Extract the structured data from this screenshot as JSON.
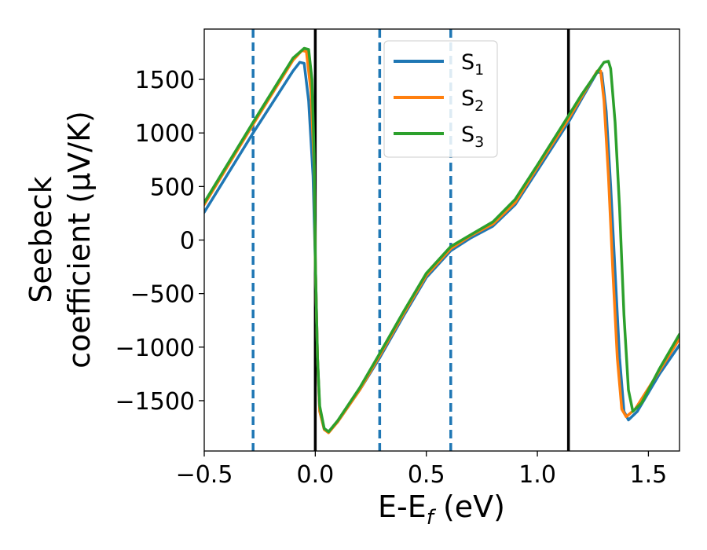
{
  "chart_data": {
    "type": "line",
    "xlabel": "E-E",
    "xlabel_sub": "f",
    "xlabel_unit": " (eV)",
    "ylabel_line1": "Seebeck",
    "ylabel_line2": "coefficient  (μV/K)",
    "xlim": [
      -0.5,
      1.64
    ],
    "ylim": [
      -1970,
      1970
    ],
    "xticks": [
      -0.5,
      0.0,
      0.5,
      1.0,
      1.5
    ],
    "xtick_labels": [
      "−0.5",
      "0.0",
      "0.5",
      "1.0",
      "1.5"
    ],
    "yticks": [
      -1500,
      -1000,
      -500,
      0,
      500,
      1000,
      1500
    ],
    "ytick_labels": [
      "−1500",
      "−1000",
      "−500",
      "0",
      "500",
      "1000",
      "1500"
    ],
    "grid": false,
    "legend_position": "top-center",
    "vlines_dashed": [
      -0.28,
      0.29,
      0.61
    ],
    "vlines_solid": [
      0.0,
      1.14
    ],
    "series": [
      {
        "name": "S",
        "name_sub": "1",
        "color": "#1f77b4",
        "points": [
          [
            -0.5,
            260
          ],
          [
            -0.28,
            1000
          ],
          [
            -0.1,
            1580
          ],
          [
            -0.07,
            1660
          ],
          [
            -0.05,
            1650
          ],
          [
            -0.03,
            1300
          ],
          [
            -0.01,
            600
          ],
          [
            0.0,
            -200
          ],
          [
            0.01,
            -1100
          ],
          [
            0.02,
            -1600
          ],
          [
            0.04,
            -1760
          ],
          [
            0.06,
            -1790
          ],
          [
            0.1,
            -1700
          ],
          [
            0.2,
            -1400
          ],
          [
            0.29,
            -1100
          ],
          [
            0.4,
            -700
          ],
          [
            0.5,
            -350
          ],
          [
            0.61,
            -100
          ],
          [
            0.7,
            20
          ],
          [
            0.8,
            130
          ],
          [
            0.9,
            330
          ],
          [
            1.0,
            650
          ],
          [
            1.14,
            1100
          ],
          [
            1.2,
            1320
          ],
          [
            1.27,
            1570
          ],
          [
            1.29,
            1560
          ],
          [
            1.31,
            1200
          ],
          [
            1.33,
            500
          ],
          [
            1.35,
            -300
          ],
          [
            1.37,
            -1100
          ],
          [
            1.39,
            -1600
          ],
          [
            1.41,
            -1680
          ],
          [
            1.45,
            -1600
          ],
          [
            1.55,
            -1250
          ],
          [
            1.64,
            -980
          ]
        ]
      },
      {
        "name": "S",
        "name_sub": "2",
        "color": "#ff7f0e",
        "points": [
          [
            -0.5,
            330
          ],
          [
            -0.28,
            1080
          ],
          [
            -0.1,
            1680
          ],
          [
            -0.06,
            1770
          ],
          [
            -0.04,
            1760
          ],
          [
            -0.02,
            1400
          ],
          [
            -0.005,
            700
          ],
          [
            0.0,
            -200
          ],
          [
            0.01,
            -1100
          ],
          [
            0.02,
            -1600
          ],
          [
            0.04,
            -1770
          ],
          [
            0.06,
            -1800
          ],
          [
            0.1,
            -1700
          ],
          [
            0.2,
            -1400
          ],
          [
            0.29,
            -1080
          ],
          [
            0.4,
            -680
          ],
          [
            0.5,
            -330
          ],
          [
            0.61,
            -80
          ],
          [
            0.7,
            40
          ],
          [
            0.8,
            150
          ],
          [
            0.9,
            350
          ],
          [
            1.0,
            680
          ],
          [
            1.14,
            1130
          ],
          [
            1.2,
            1340
          ],
          [
            1.27,
            1580
          ],
          [
            1.285,
            1580
          ],
          [
            1.3,
            1300
          ],
          [
            1.32,
            600
          ],
          [
            1.34,
            -300
          ],
          [
            1.36,
            -1100
          ],
          [
            1.38,
            -1580
          ],
          [
            1.4,
            -1650
          ],
          [
            1.44,
            -1580
          ],
          [
            1.55,
            -1220
          ],
          [
            1.64,
            -920
          ]
        ]
      },
      {
        "name": "S",
        "name_sub": "3",
        "color": "#2ca02c",
        "points": [
          [
            -0.5,
            350
          ],
          [
            -0.28,
            1100
          ],
          [
            -0.1,
            1700
          ],
          [
            -0.05,
            1790
          ],
          [
            -0.03,
            1780
          ],
          [
            -0.015,
            1500
          ],
          [
            -0.005,
            800
          ],
          [
            0.0,
            -200
          ],
          [
            0.01,
            -1100
          ],
          [
            0.02,
            -1550
          ],
          [
            0.04,
            -1760
          ],
          [
            0.06,
            -1790
          ],
          [
            0.1,
            -1690
          ],
          [
            0.2,
            -1380
          ],
          [
            0.29,
            -1060
          ],
          [
            0.4,
            -660
          ],
          [
            0.5,
            -310
          ],
          [
            0.61,
            -60
          ],
          [
            0.7,
            50
          ],
          [
            0.8,
            170
          ],
          [
            0.9,
            380
          ],
          [
            1.0,
            700
          ],
          [
            1.14,
            1160
          ],
          [
            1.2,
            1360
          ],
          [
            1.28,
            1600
          ],
          [
            1.3,
            1660
          ],
          [
            1.32,
            1670
          ],
          [
            1.33,
            1600
          ],
          [
            1.35,
            1100
          ],
          [
            1.37,
            300
          ],
          [
            1.39,
            -700
          ],
          [
            1.41,
            -1400
          ],
          [
            1.43,
            -1600
          ],
          [
            1.47,
            -1520
          ],
          [
            1.55,
            -1200
          ],
          [
            1.64,
            -880
          ]
        ]
      }
    ]
  }
}
